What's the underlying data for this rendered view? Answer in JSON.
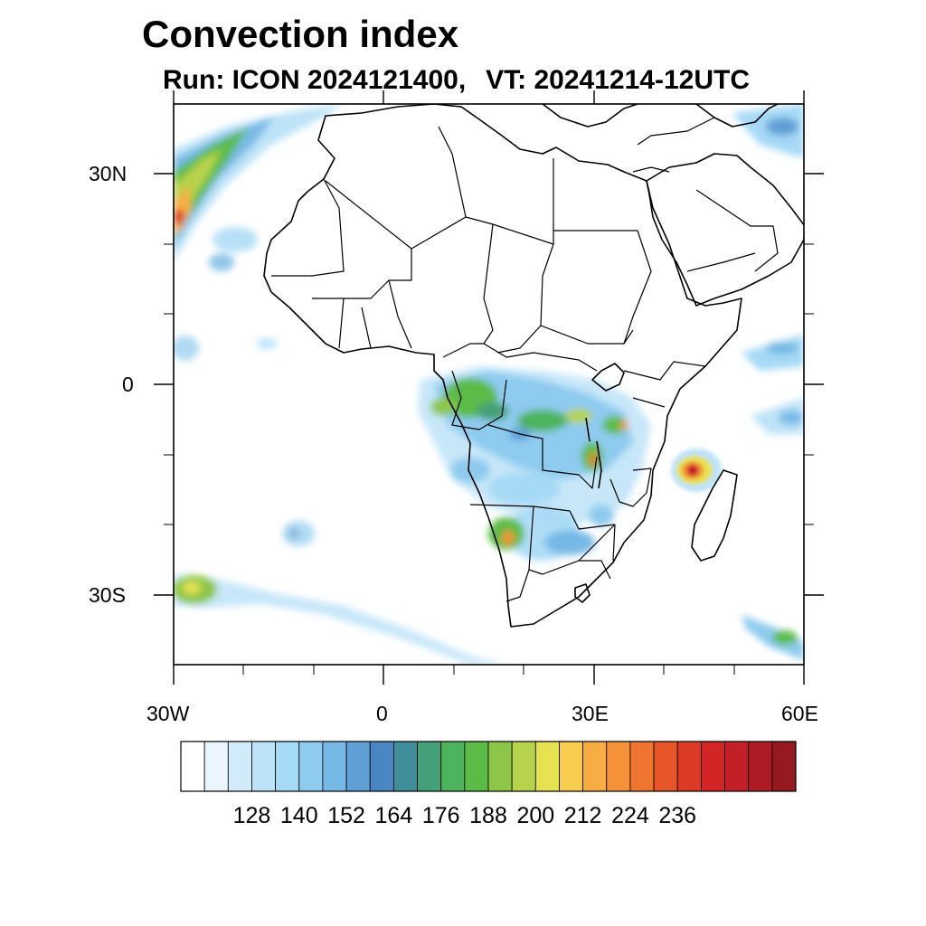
{
  "title": "Convection index",
  "subtitle": {
    "run": "Run: ICON 2024121400,",
    "vt": "VT: 20241214-12UTC"
  },
  "map": {
    "region": "Africa",
    "lon_range": [
      -30,
      60
    ],
    "lat_range": [
      -40,
      40
    ],
    "y_tick_labels": [
      "30N",
      "0",
      "30S"
    ],
    "x_tick_labels": [
      "30W",
      "0",
      "30E",
      "60E"
    ]
  },
  "colorbar": {
    "colors": [
      "#ffffff",
      "#eaf5fd",
      "#d2ebfa",
      "#bde3f8",
      "#a6d9f6",
      "#8ecbef",
      "#77b9e6",
      "#5f9fd6",
      "#4a86c3",
      "#3f8e99",
      "#44a079",
      "#4db35c",
      "#5cbb47",
      "#8ec64a",
      "#b7d24c",
      "#e7e251",
      "#f8cc4e",
      "#f7ad44",
      "#f59139",
      "#ef742f",
      "#e65629",
      "#dd3a26",
      "#d32426",
      "#c21f27",
      "#ad1c25",
      "#951a1f"
    ],
    "labels": [
      "128",
      "140",
      "152",
      "164",
      "176",
      "188",
      "200",
      "212",
      "224",
      "236"
    ]
  }
}
